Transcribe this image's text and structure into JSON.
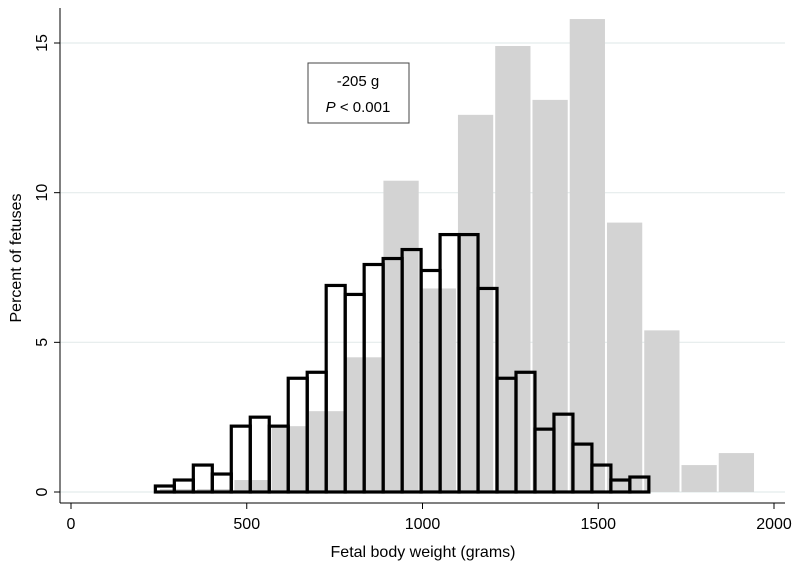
{
  "chart_data": {
    "type": "bar",
    "title": "",
    "xlabel": "Fetal body weight (grams)",
    "ylabel": "Percent of fetuses",
    "xlim": [
      0,
      2000
    ],
    "ylim": [
      0,
      16
    ],
    "xticks": [
      0,
      500,
      1000,
      1500,
      2000
    ],
    "yticks": [
      0,
      5,
      10,
      15
    ],
    "x_tick_labels": [
      "0",
      "500",
      "1000",
      "1500",
      "2000"
    ],
    "y_tick_labels": [
      "0",
      "5",
      "10",
      "15"
    ],
    "grid": "horizontal",
    "annotation": {
      "line1": "-205 g",
      "line2_italic": "P",
      "line2_rest": " < 0.001"
    },
    "series": [
      {
        "style": "gray-filled",
        "color": "#d3d3d3",
        "bins": [
          {
            "x0": 250,
            "x1": 356,
            "value": 0.1
          },
          {
            "x0": 356,
            "x1": 462,
            "value": 0.1
          },
          {
            "x0": 462,
            "x1": 568,
            "value": 0.4
          },
          {
            "x0": 568,
            "x1": 674,
            "value": 2.2
          },
          {
            "x0": 674,
            "x1": 780,
            "value": 2.7
          },
          {
            "x0": 780,
            "x1": 886,
            "value": 4.5
          },
          {
            "x0": 886,
            "x1": 992,
            "value": 10.4
          },
          {
            "x0": 992,
            "x1": 1098,
            "value": 6.8
          },
          {
            "x0": 1098,
            "x1": 1204,
            "value": 12.6
          },
          {
            "x0": 1204,
            "x1": 1310,
            "value": 14.9
          },
          {
            "x0": 1310,
            "x1": 1416,
            "value": 13.1
          },
          {
            "x0": 1416,
            "x1": 1522,
            "value": 15.8
          },
          {
            "x0": 1522,
            "x1": 1628,
            "value": 9.0
          },
          {
            "x0": 1628,
            "x1": 1734,
            "value": 5.4
          },
          {
            "x0": 1734,
            "x1": 1840,
            "value": 0.9
          },
          {
            "x0": 1840,
            "x1": 1946,
            "value": 1.3
          }
        ]
      },
      {
        "style": "black-outline",
        "color": "#000000",
        "bins": [
          {
            "x0": 240,
            "x1": 294,
            "value": 0.2
          },
          {
            "x0": 294,
            "x1": 348,
            "value": 0.4
          },
          {
            "x0": 348,
            "x1": 402,
            "value": 0.9
          },
          {
            "x0": 402,
            "x1": 456,
            "value": 0.6
          },
          {
            "x0": 456,
            "x1": 510,
            "value": 2.2
          },
          {
            "x0": 510,
            "x1": 564,
            "value": 2.5
          },
          {
            "x0": 564,
            "x1": 618,
            "value": 2.2
          },
          {
            "x0": 618,
            "x1": 672,
            "value": 3.8
          },
          {
            "x0": 672,
            "x1": 726,
            "value": 4.0
          },
          {
            "x0": 726,
            "x1": 780,
            "value": 6.9
          },
          {
            "x0": 780,
            "x1": 834,
            "value": 6.6
          },
          {
            "x0": 834,
            "x1": 888,
            "value": 7.6
          },
          {
            "x0": 888,
            "x1": 942,
            "value": 7.8
          },
          {
            "x0": 942,
            "x1": 996,
            "value": 8.1
          },
          {
            "x0": 996,
            "x1": 1050,
            "value": 7.4
          },
          {
            "x0": 1050,
            "x1": 1104,
            "value": 8.6
          },
          {
            "x0": 1104,
            "x1": 1158,
            "value": 8.6
          },
          {
            "x0": 1158,
            "x1": 1212,
            "value": 6.8
          },
          {
            "x0": 1212,
            "x1": 1266,
            "value": 3.8
          },
          {
            "x0": 1266,
            "x1": 1320,
            "value": 4.0
          },
          {
            "x0": 1320,
            "x1": 1374,
            "value": 2.1
          },
          {
            "x0": 1374,
            "x1": 1428,
            "value": 2.6
          },
          {
            "x0": 1428,
            "x1": 1482,
            "value": 1.6
          },
          {
            "x0": 1482,
            "x1": 1536,
            "value": 0.9
          },
          {
            "x0": 1536,
            "x1": 1590,
            "value": 0.4
          },
          {
            "x0": 1590,
            "x1": 1644,
            "value": 0.5
          }
        ]
      }
    ]
  }
}
